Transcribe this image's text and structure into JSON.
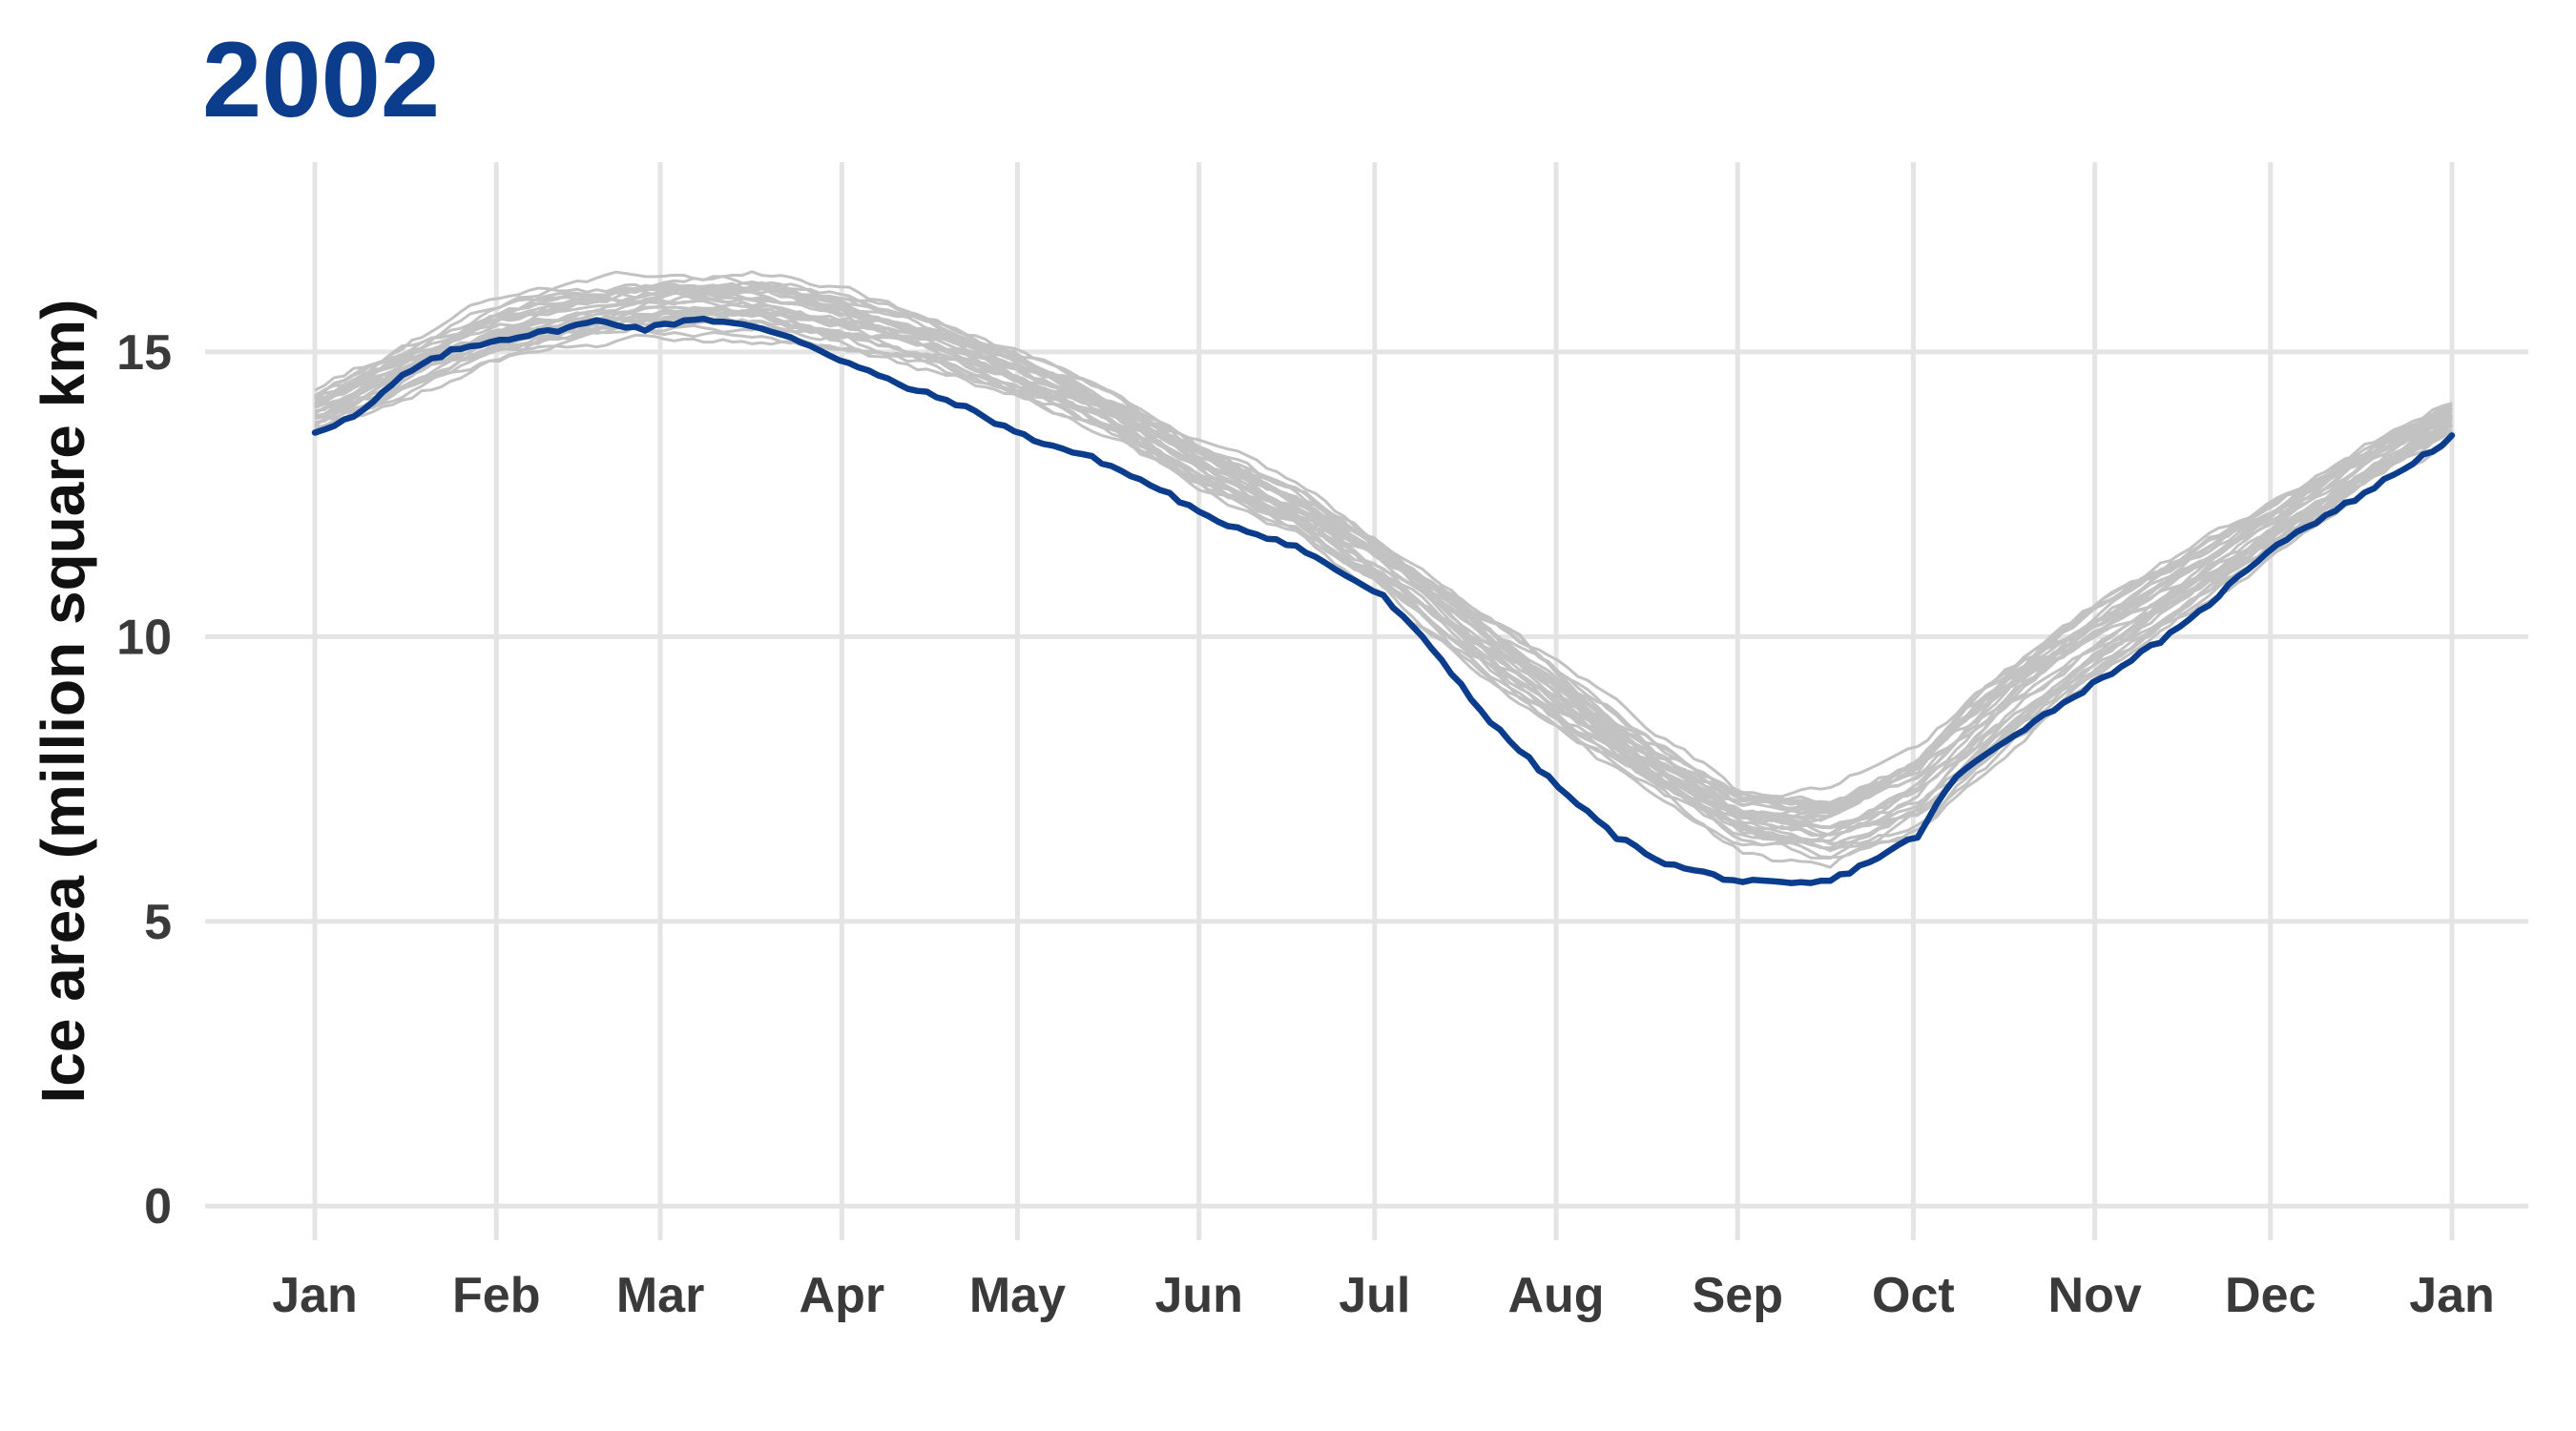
{
  "chart_data": {
    "type": "line",
    "title": "2002",
    "xlabel": "",
    "ylabel": "Ice area (million square km)",
    "x_ticks": [
      "Jan",
      "Feb",
      "Mar",
      "Apr",
      "May",
      "Jun",
      "Jul",
      "Aug",
      "Sep",
      "Oct",
      "Nov",
      "Dec",
      "Jan"
    ],
    "y_ticks": [
      "0",
      "5",
      "10",
      "15"
    ],
    "xlim_months": [
      0,
      12
    ],
    "ylim": [
      -0.6,
      18.5
    ],
    "grid": true,
    "legend": "none",
    "colors": {
      "highlight": "#0b3d8c",
      "other_years": "#c2c2c2",
      "grid": "#e4e4e4",
      "title": "#0b3d8c"
    },
    "highlight_series": {
      "year": "2002",
      "x_months": [
        0,
        0.25,
        0.5,
        0.75,
        1.0,
        1.3,
        1.6,
        1.85,
        2.15,
        2.35,
        2.65,
        3.0,
        3.3,
        3.6,
        4.0,
        4.4,
        4.8,
        5.0,
        5.5,
        6.0,
        6.3,
        6.6,
        7.0,
        7.3,
        7.6,
        8.0,
        8.3,
        8.5,
        8.7,
        9.0,
        9.2,
        9.5,
        10.0,
        10.5,
        11.0,
        11.5,
        12.0
      ],
      "values": [
        13.6,
        13.9,
        14.6,
        15.0,
        15.2,
        15.35,
        15.55,
        15.4,
        15.6,
        15.5,
        15.3,
        14.8,
        14.4,
        14.1,
        13.5,
        13.1,
        12.5,
        12.1,
        11.6,
        10.7,
        9.7,
        8.5,
        7.3,
        6.5,
        6.0,
        5.7,
        5.65,
        5.7,
        6.0,
        6.5,
        7.5,
        8.2,
        9.2,
        10.2,
        11.6,
        12.5,
        13.5
      ]
    },
    "background_series": {
      "count": 30,
      "x_months": [
        0,
        0.5,
        1.0,
        1.5,
        2.0,
        2.5,
        3.0,
        3.5,
        4.0,
        4.5,
        5.0,
        5.5,
        6.0,
        6.5,
        7.0,
        7.5,
        8.0,
        8.5,
        9.0,
        9.5,
        10.0,
        10.5,
        11.0,
        11.5,
        12.0
      ],
      "envelope_mean": [
        13.9,
        14.6,
        15.3,
        15.6,
        15.8,
        15.8,
        15.5,
        15.1,
        14.5,
        13.8,
        12.9,
        12.2,
        11.2,
        10.0,
        8.8,
        7.7,
        6.8,
        6.6,
        7.3,
        8.7,
        9.9,
        10.9,
        11.9,
        12.9,
        13.8
      ],
      "envelope_spread": [
        0.35,
        0.45,
        0.45,
        0.45,
        0.5,
        0.5,
        0.45,
        0.4,
        0.35,
        0.35,
        0.35,
        0.35,
        0.4,
        0.5,
        0.55,
        0.55,
        0.55,
        0.65,
        0.7,
        0.65,
        0.55,
        0.45,
        0.4,
        0.35,
        0.3
      ]
    }
  }
}
